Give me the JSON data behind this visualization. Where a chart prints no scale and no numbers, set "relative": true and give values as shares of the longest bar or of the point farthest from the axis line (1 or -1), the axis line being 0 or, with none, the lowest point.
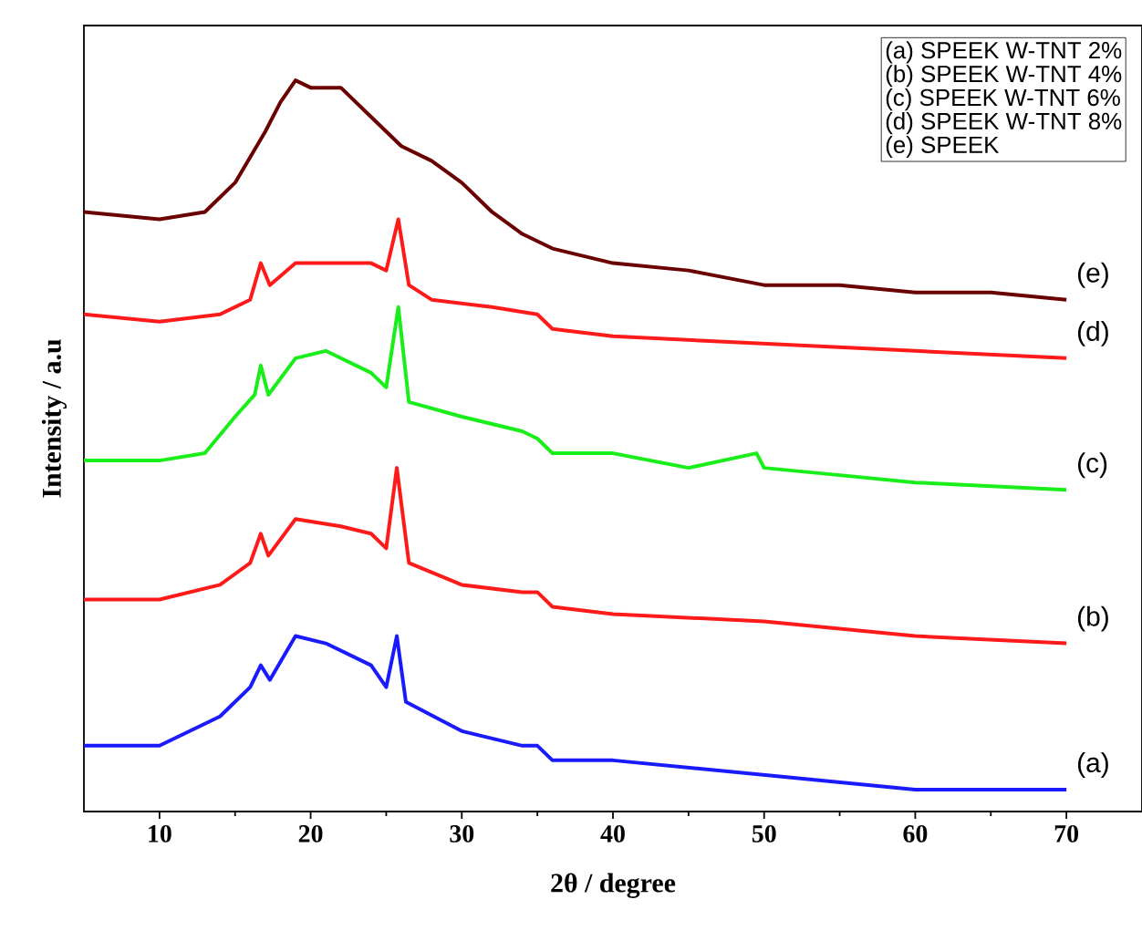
{
  "chart_data": {
    "type": "line",
    "relative": true,
    "xlabel": "2θ / degree",
    "ylabel": "Intensity / a.u",
    "xlim": [
      5,
      75
    ],
    "xticks": [
      10,
      20,
      30,
      40,
      50,
      60,
      70
    ],
    "tick_labels": "x",
    "marker": "none",
    "line_style": "solid",
    "series": [
      {
        "color": "#1a1aff",
        "x": [
          5,
          10,
          14,
          16,
          16.7,
          17.3,
          19,
          21,
          24,
          25,
          25.7,
          26.3,
          30,
          34,
          35,
          36,
          40,
          50,
          60,
          70
        ],
        "values": [
          0.09,
          0.09,
          0.13,
          0.17,
          0.2,
          0.18,
          0.24,
          0.23,
          0.2,
          0.17,
          0.24,
          0.15,
          0.11,
          0.09,
          0.09,
          0.07,
          0.07,
          0.05,
          0.03,
          0.03
        ]
      },
      {
        "color": "#ff1a1a",
        "x": [
          5,
          10,
          14,
          16,
          16.7,
          17.2,
          19,
          22,
          24,
          25,
          25.7,
          26.5,
          30,
          34,
          35,
          36,
          40,
          50,
          60,
          70
        ],
        "values": [
          0.29,
          0.29,
          0.31,
          0.34,
          0.38,
          0.35,
          0.4,
          0.39,
          0.38,
          0.36,
          0.47,
          0.34,
          0.31,
          0.3,
          0.3,
          0.28,
          0.27,
          0.26,
          0.24,
          0.23
        ]
      },
      {
        "color": "#1aee1a",
        "x": [
          5,
          10,
          13,
          15,
          16.3,
          16.7,
          17.2,
          19,
          21,
          24,
          25,
          25.8,
          26.5,
          30,
          34,
          35,
          36,
          40,
          45,
          49.5,
          50,
          55,
          60,
          70
        ],
        "values": [
          0.48,
          0.48,
          0.49,
          0.54,
          0.57,
          0.61,
          0.57,
          0.62,
          0.63,
          0.6,
          0.58,
          0.69,
          0.56,
          0.54,
          0.52,
          0.51,
          0.49,
          0.49,
          0.47,
          0.49,
          0.47,
          0.46,
          0.45,
          0.44
        ]
      },
      {
        "color": "#ff1a1a",
        "x": [
          5,
          10,
          14,
          16,
          16.7,
          17.3,
          19,
          22,
          24,
          25,
          25.8,
          26.5,
          28,
          32,
          35,
          36,
          40,
          50,
          60,
          70
        ],
        "values": [
          0.68,
          0.67,
          0.68,
          0.7,
          0.75,
          0.72,
          0.75,
          0.75,
          0.75,
          0.74,
          0.81,
          0.72,
          0.7,
          0.69,
          0.68,
          0.66,
          0.65,
          0.64,
          0.63,
          0.62
        ]
      },
      {
        "color": "#6b0000",
        "x": [
          5,
          10,
          13,
          15,
          17,
          18,
          19,
          20,
          22,
          24,
          26,
          28,
          30,
          32,
          34,
          36,
          40,
          45,
          50,
          55,
          60,
          65,
          70
        ],
        "values": [
          0.82,
          0.81,
          0.82,
          0.86,
          0.93,
          0.97,
          1.0,
          0.99,
          0.99,
          0.95,
          0.91,
          0.89,
          0.86,
          0.82,
          0.79,
          0.77,
          0.75,
          0.74,
          0.72,
          0.72,
          0.71,
          0.71,
          0.7
        ]
      }
    ],
    "annotations": [
      "(a)",
      "(b)",
      "(c)",
      "(d)",
      "(e)",
      "(a) SPEEK W-TNT 2%",
      "(b) SPEEK W-TNT 4%",
      "(c) SPEEK W-TNT 6%",
      "(d) SPEEK W-TNT 8%",
      "(e) SPEEK"
    ]
  }
}
